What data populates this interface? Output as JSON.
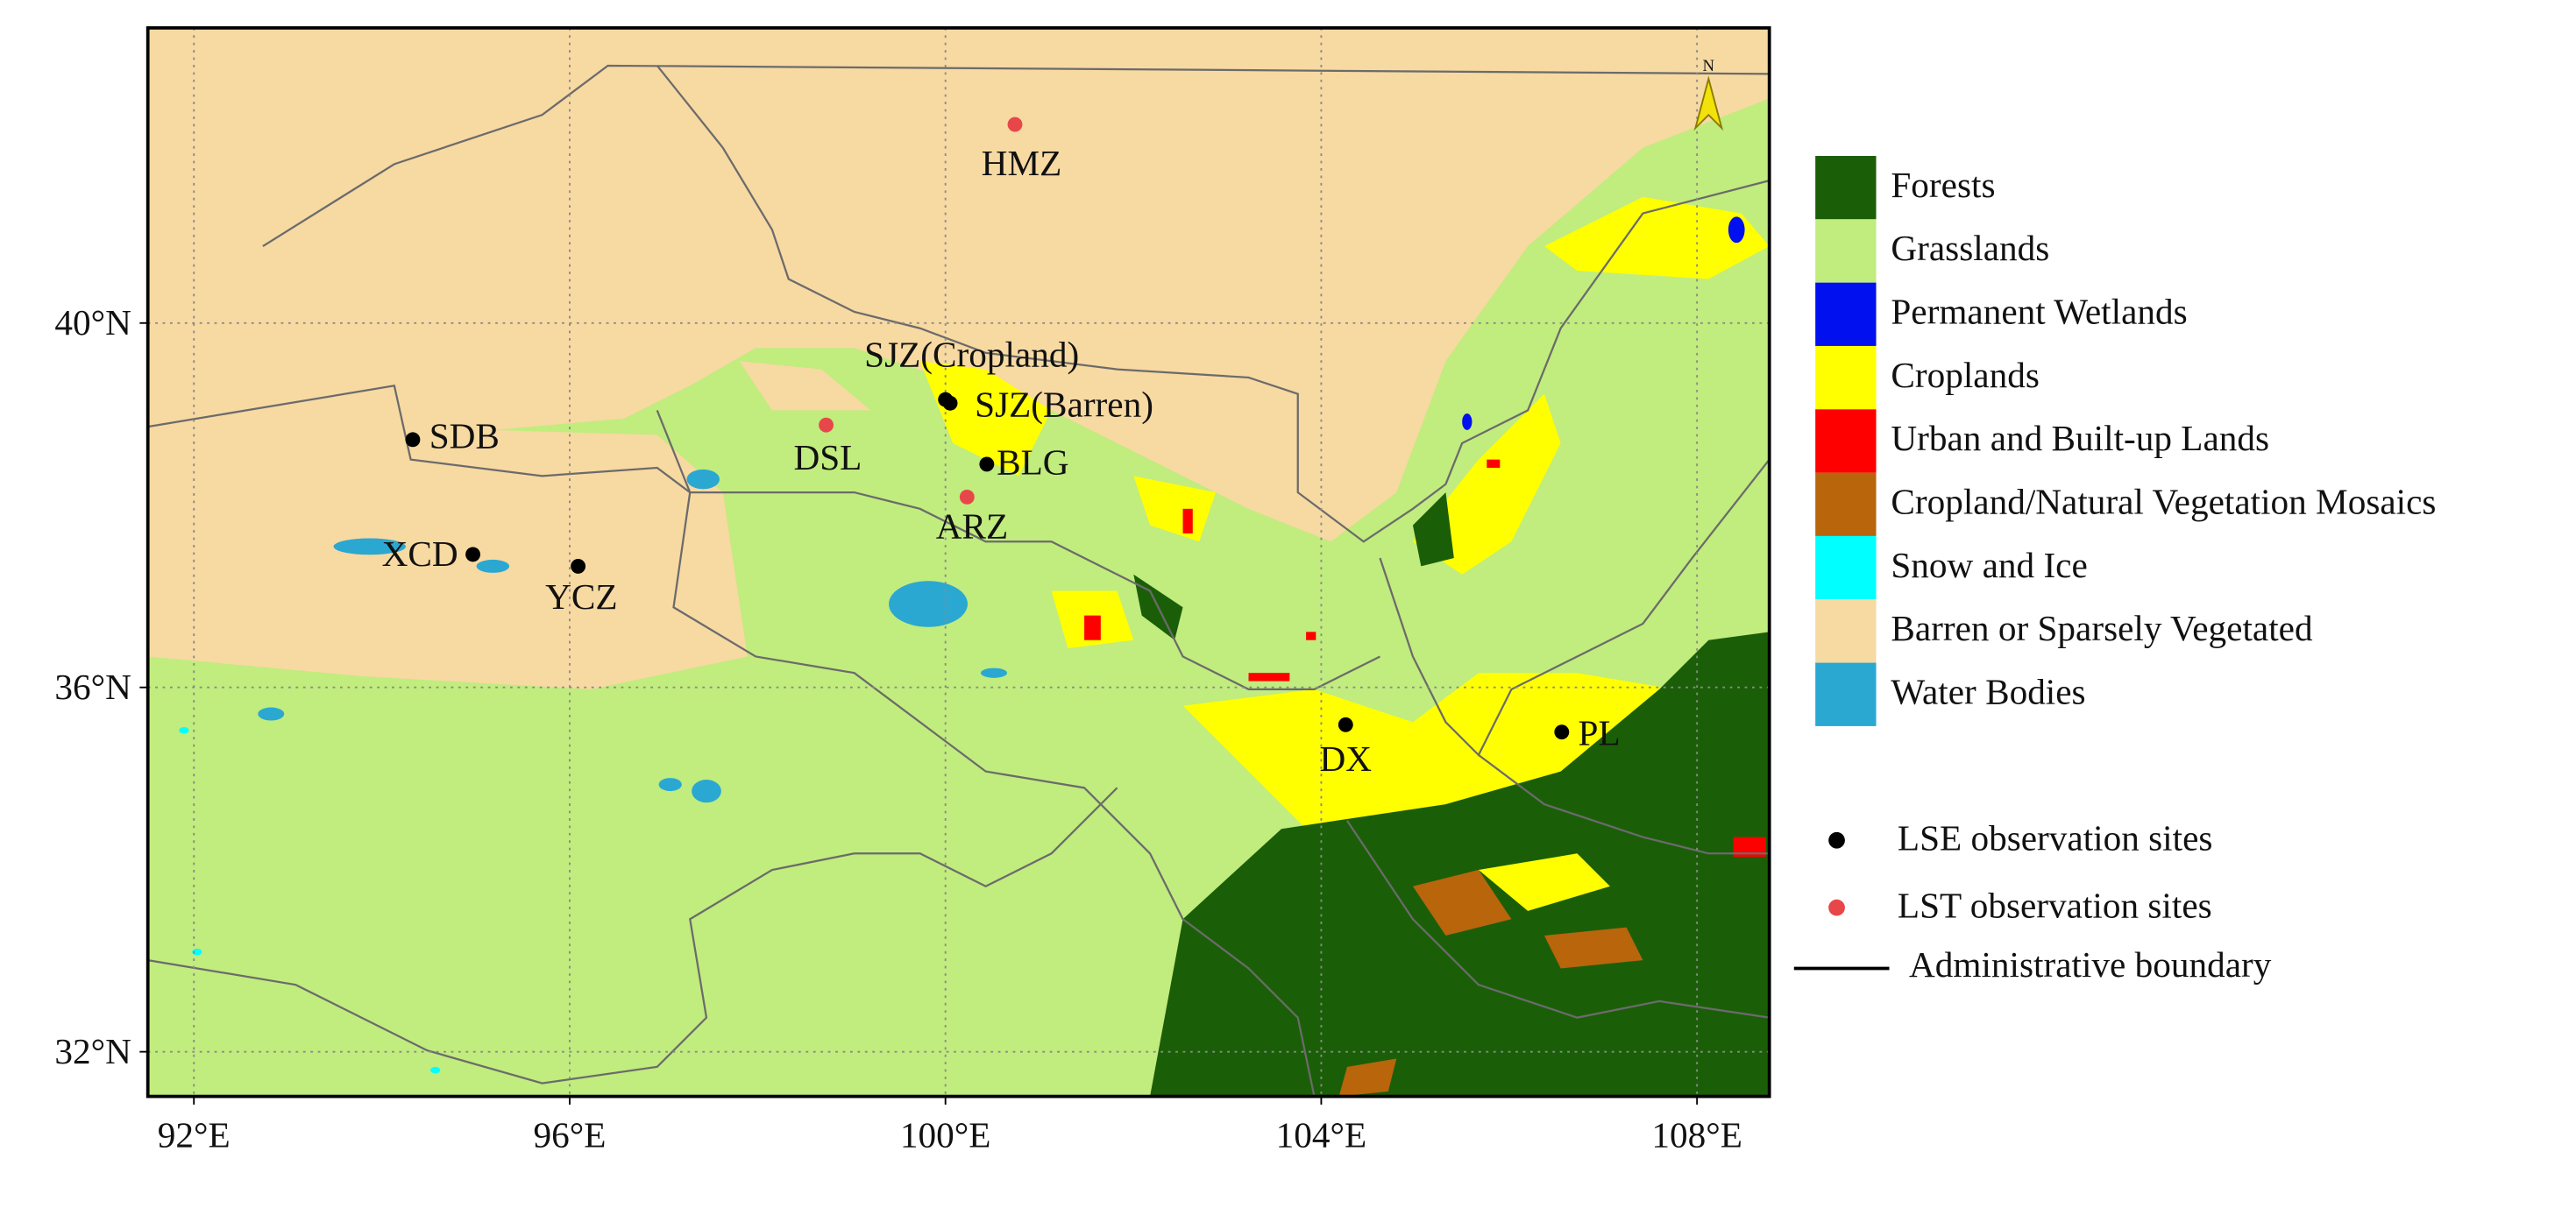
{
  "map": {
    "xlim": [
      91.51,
      108.77
    ],
    "ylim": [
      31.51,
      43.24
    ],
    "xticks": [
      {
        "value": 92,
        "label": "92°E"
      },
      {
        "value": 96,
        "label": "96°E"
      },
      {
        "value": 100,
        "label": "100°E"
      },
      {
        "value": 104,
        "label": "104°E"
      },
      {
        "value": 108,
        "label": "108°E"
      }
    ],
    "yticks": [
      {
        "value": 32,
        "label": "32°N"
      },
      {
        "value": 36,
        "label": "36°N"
      },
      {
        "value": 40,
        "label": "40°N"
      }
    ],
    "grid": true,
    "north_label": "N",
    "land_cover": [
      {
        "name": "Forests",
        "color": "#1b5e08"
      },
      {
        "name": "Grasslands",
        "color": "#c1ec7e"
      },
      {
        "name": "Permanent Wetlands",
        "color": "#0010ee"
      },
      {
        "name": "Croplands",
        "color": "#ffff00"
      },
      {
        "name": "Urban and Built-up Lands",
        "color": "#ff0000"
      },
      {
        "name": "Cropland/Natural Vegetation Mosaics",
        "color": "#b8650c"
      },
      {
        "name": "Snow and Ice",
        "color": "#00ffff"
      },
      {
        "name": "Barren or Sparsely Vegetated",
        "color": "#f7d9a2"
      },
      {
        "name": "Water Bodies",
        "color": "#2aa8d2"
      }
    ],
    "site_groups": [
      {
        "label": "LSE observation sites",
        "color": "#000000",
        "sites": [
          {
            "name": "SJZ(Cropland)",
            "lon": 100.0,
            "lat": 39.16
          },
          {
            "name": "SJZ(Barren)",
            "lon": 100.05,
            "lat": 39.12
          },
          {
            "name": "SDB",
            "lon": 94.33,
            "lat": 38.72
          },
          {
            "name": "BLG",
            "lon": 100.44,
            "lat": 38.45
          },
          {
            "name": "XCD",
            "lon": 94.97,
            "lat": 37.46
          },
          {
            "name": "YCZ",
            "lon": 96.09,
            "lat": 37.33
          },
          {
            "name": "DX",
            "lon": 104.26,
            "lat": 35.59
          },
          {
            "name": "PL",
            "lon": 106.56,
            "lat": 35.51
          }
        ]
      },
      {
        "label": "LST observation sites",
        "color": "#e8474a",
        "sites": [
          {
            "name": "HMZ",
            "lon": 100.74,
            "lat": 42.18
          },
          {
            "name": "DSL",
            "lon": 98.73,
            "lat": 38.88
          },
          {
            "name": "ARZ",
            "lon": 100.23,
            "lat": 38.09
          }
        ]
      }
    ],
    "boundary_label": "Administrative boundary"
  }
}
